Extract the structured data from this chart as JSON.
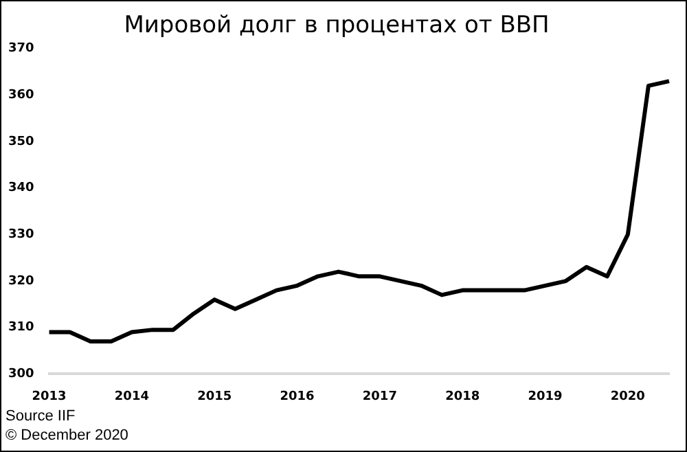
{
  "chart_data": {
    "type": "line",
    "title": "Мировой долг в процентах от ВВП",
    "categories": [
      "2013",
      null,
      null,
      null,
      "2014",
      null,
      null,
      null,
      "2015",
      null,
      null,
      null,
      "2016",
      null,
      null,
      null,
      "2017",
      null,
      null,
      null,
      "2018",
      null,
      null,
      null,
      "2019",
      null,
      null,
      null,
      "2020",
      null,
      null
    ],
    "series": [
      {
        "color": "#000000",
        "values": [
          309,
          309,
          307,
          307,
          309,
          309.5,
          309.5,
          313,
          316,
          314,
          316,
          318,
          319,
          321,
          322,
          321,
          321,
          320,
          319,
          317,
          318,
          318,
          318,
          318,
          319,
          320,
          323,
          321,
          330,
          362,
          363
        ]
      }
    ],
    "ylim": [
      300,
      370
    ],
    "yticks": [
      300,
      310,
      320,
      330,
      340,
      350,
      360,
      370
    ],
    "grid": false,
    "legend": false,
    "marker": "none",
    "line_style": "solid",
    "annotations": [
      "Source IIF",
      "© December 2020"
    ]
  }
}
